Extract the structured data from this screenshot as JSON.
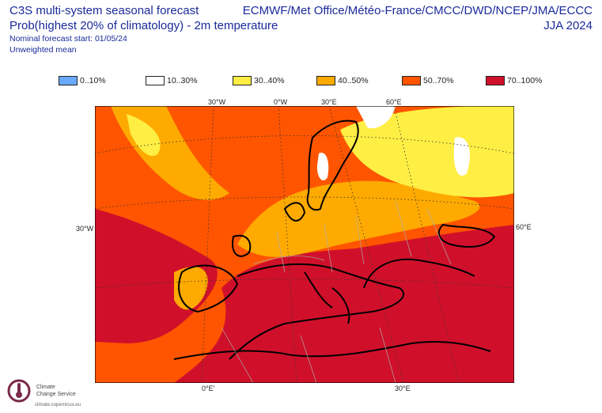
{
  "header": {
    "title_line1": "C3S multi-system seasonal forecast",
    "title_line2": "Prob(highest 20% of climatology) - 2m temperature",
    "start_line": "Nominal forecast start: 01/05/24",
    "mean_line": "Unweighted mean",
    "systems": "ECMWF/Met Office/Météo-France/CMCC/DWD/NCEP/JMA/ECCC",
    "season": "JJA 2024"
  },
  "legend": [
    {
      "label": "0..10%",
      "color": "#6aa9ff"
    },
    {
      "label": "10..30%",
      "color": "#ffffff"
    },
    {
      "label": "30..40%",
      "color": "#ffee44"
    },
    {
      "label": "40..50%",
      "color": "#ffaa00"
    },
    {
      "label": "50..70%",
      "color": "#ff5500"
    },
    {
      "label": "70..100%",
      "color": "#d0102a"
    }
  ],
  "ticks": {
    "top_30w": "30°W",
    "top_0w": "0°W",
    "top_30e": "30°E",
    "top_60e": "60°E",
    "left_30w": "30°W",
    "right_60e": "60°E",
    "bottom_0e": "0°E'",
    "bottom_30e": "30°E"
  },
  "logo": {
    "line1": "Climate",
    "line2": "Change Service",
    "url": "climate.copernicus.eu"
  }
}
